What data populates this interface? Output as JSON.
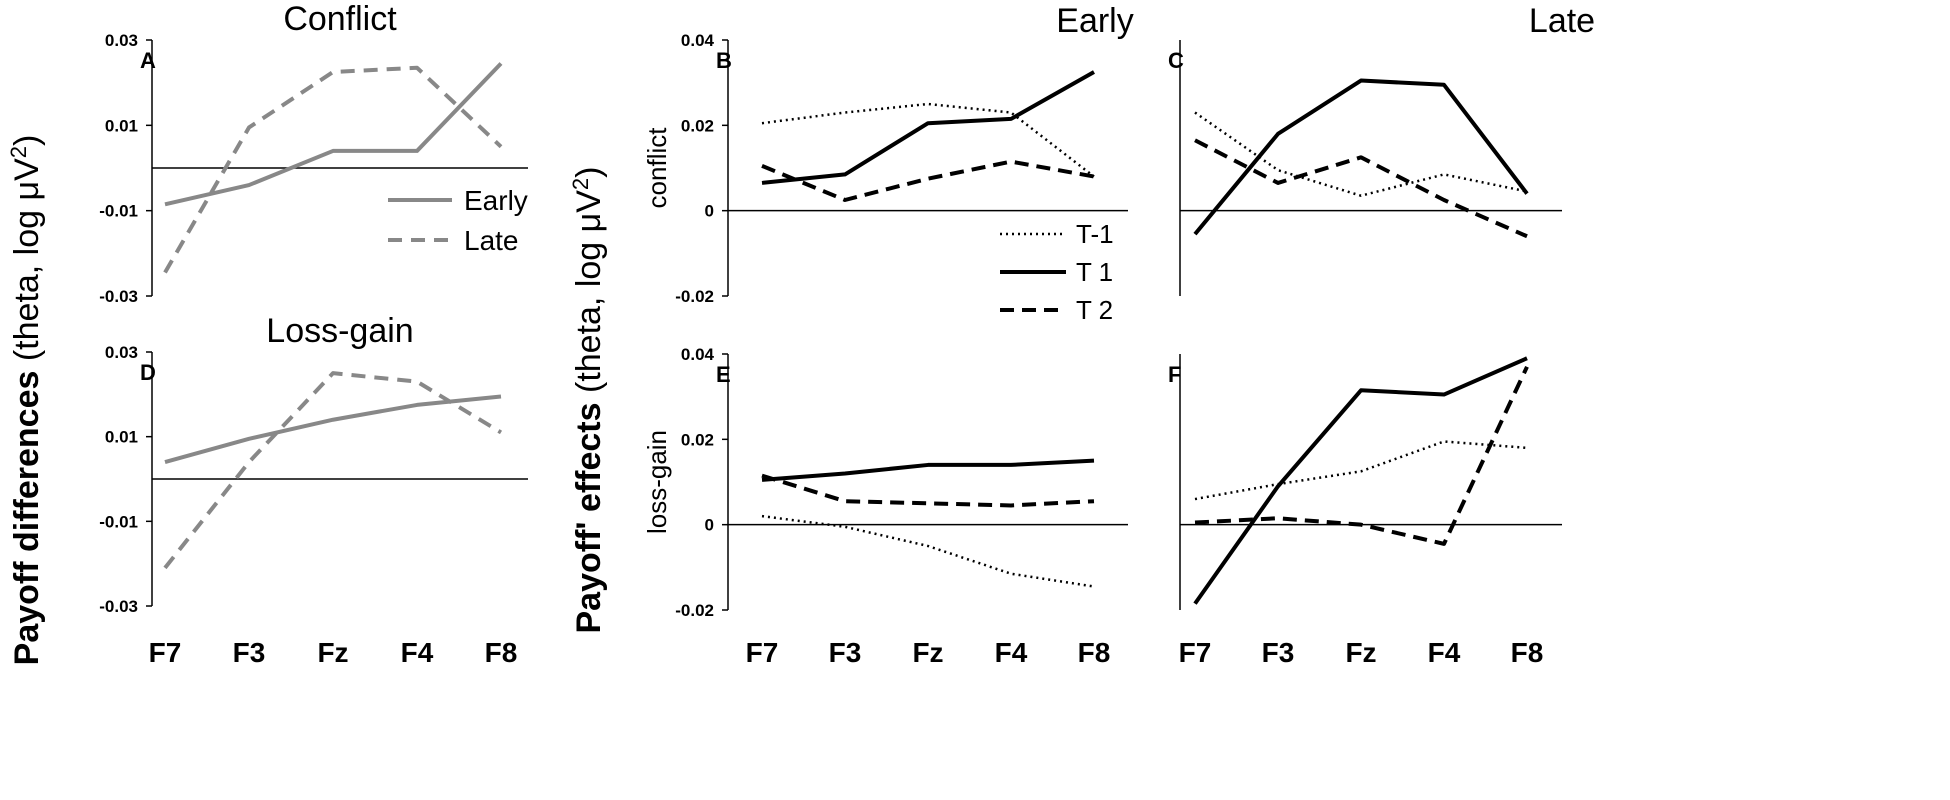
{
  "figure": {
    "column_titles": {
      "early": "Early",
      "late": "Late"
    },
    "left_ylabel": {
      "bold": "Payoff differences",
      "rest": " (theta, log μV",
      "sup": "2",
      "close": ")"
    },
    "right_ylabel": {
      "bold": "Payoff' effects",
      "rest": " (theta, log μV",
      "sup": "2",
      "close": ")"
    },
    "colors": {
      "gray": "#888888",
      "black": "#000000"
    }
  },
  "chart_data": [
    {
      "id": "A",
      "type": "line",
      "title": "Conflict",
      "panel_label": "A",
      "categories": [
        "F7",
        "F3",
        "Fz",
        "F4",
        "F8"
      ],
      "ylim": [
        -0.03,
        0.03
      ],
      "yticks": [
        "0.03",
        "0.01",
        "-0.01",
        "-0.03"
      ],
      "ytick_values": [
        0.03,
        0.01,
        -0.01,
        -0.03
      ],
      "ylabel": "",
      "show_xticks": false,
      "legend": [
        "Early",
        "Late"
      ],
      "series": [
        {
          "name": "Early",
          "style": "solid-gray",
          "values": [
            -0.0085,
            -0.004,
            0.004,
            0.004,
            0.0245
          ]
        },
        {
          "name": "Late",
          "style": "dashed-gray",
          "values": [
            -0.0245,
            0.0095,
            0.0225,
            0.0235,
            0.005
          ]
        }
      ]
    },
    {
      "id": "B",
      "type": "line",
      "title": "Early",
      "panel_label": "B",
      "categories": [
        "F7",
        "F3",
        "Fz",
        "F4",
        "F8"
      ],
      "ylim": [
        -0.02,
        0.04
      ],
      "yticks": [
        "0.04",
        "0.02",
        "0",
        "-0.02"
      ],
      "ytick_values": [
        0.04,
        0.02,
        0,
        -0.02
      ],
      "ylabel": "conflict",
      "show_xticks": false,
      "legend": [
        "T-1",
        "T 1",
        "T 2"
      ],
      "series": [
        {
          "name": "T-1",
          "style": "dotted",
          "values": [
            0.0205,
            0.023,
            0.025,
            0.023,
            0.008
          ]
        },
        {
          "name": "T 1",
          "style": "solid",
          "values": [
            0.0065,
            0.0085,
            0.0205,
            0.0215,
            0.0325
          ]
        },
        {
          "name": "T 2",
          "style": "dashed",
          "values": [
            0.0105,
            0.0025,
            0.0075,
            0.0115,
            0.008
          ]
        }
      ]
    },
    {
      "id": "C",
      "type": "line",
      "title": "Late",
      "panel_label": "C",
      "categories": [
        "F7",
        "F3",
        "Fz",
        "F4",
        "F8"
      ],
      "ylim": [
        -0.02,
        0.04
      ],
      "yticks": [],
      "ytick_values": [],
      "ylabel": "",
      "show_xticks": false,
      "legend": [],
      "series": [
        {
          "name": "T-1",
          "style": "dotted",
          "values": [
            0.023,
            0.0095,
            0.0035,
            0.0085,
            0.0045
          ]
        },
        {
          "name": "T 1",
          "style": "solid",
          "values": [
            -0.0055,
            0.018,
            0.0305,
            0.0295,
            0.004
          ]
        },
        {
          "name": "T 2",
          "style": "dashed",
          "values": [
            0.0165,
            0.0065,
            0.0125,
            0.0025,
            -0.006
          ]
        }
      ]
    },
    {
      "id": "D",
      "type": "line",
      "title": "Loss-gain",
      "panel_label": "D",
      "categories": [
        "F7",
        "F3",
        "Fz",
        "F4",
        "F8"
      ],
      "ylim": [
        -0.03,
        0.03
      ],
      "yticks": [
        "0.03",
        "0.01",
        "-0.01",
        "-0.03"
      ],
      "ytick_values": [
        0.03,
        0.01,
        -0.01,
        -0.03
      ],
      "ylabel": "",
      "show_xticks": true,
      "legend": [],
      "series": [
        {
          "name": "Early",
          "style": "solid-gray",
          "values": [
            0.004,
            0.0095,
            0.014,
            0.0175,
            0.0195
          ]
        },
        {
          "name": "Late",
          "style": "dashed-gray",
          "values": [
            -0.021,
            0.004,
            0.025,
            0.023,
            0.011
          ]
        }
      ]
    },
    {
      "id": "E",
      "type": "line",
      "title": "",
      "panel_label": "E",
      "categories": [
        "F7",
        "F3",
        "Fz",
        "F4",
        "F8"
      ],
      "ylim": [
        -0.02,
        0.04
      ],
      "yticks": [
        "0.04",
        "0.02",
        "0",
        "-0.02"
      ],
      "ytick_values": [
        0.04,
        0.02,
        0,
        -0.02
      ],
      "ylabel": "loss-gain",
      "show_xticks": true,
      "legend": [],
      "series": [
        {
          "name": "T-1",
          "style": "dotted",
          "values": [
            0.002,
            -0.0005,
            -0.005,
            -0.0115,
            -0.0145
          ]
        },
        {
          "name": "T 1",
          "style": "solid",
          "values": [
            0.0105,
            0.012,
            0.014,
            0.014,
            0.015
          ]
        },
        {
          "name": "T 2",
          "style": "dashed",
          "values": [
            0.0115,
            0.0055,
            0.005,
            0.0045,
            0.0055
          ]
        }
      ]
    },
    {
      "id": "F",
      "type": "line",
      "title": "",
      "panel_label": "F",
      "categories": [
        "F7",
        "F3",
        "Fz",
        "F4",
        "F8"
      ],
      "ylim": [
        -0.02,
        0.04
      ],
      "yticks": [],
      "ytick_values": [],
      "ylabel": "",
      "show_xticks": true,
      "legend": [],
      "series": [
        {
          "name": "T-1",
          "style": "dotted",
          "values": [
            0.006,
            0.0095,
            0.0125,
            0.0195,
            0.018
          ]
        },
        {
          "name": "T 1",
          "style": "solid",
          "values": [
            -0.0185,
            0.009,
            0.0315,
            0.0305,
            0.039
          ]
        },
        {
          "name": "T 2",
          "style": "dashed",
          "values": [
            0.0005,
            0.0015,
            0.0,
            -0.0045,
            0.037
          ]
        }
      ]
    }
  ]
}
